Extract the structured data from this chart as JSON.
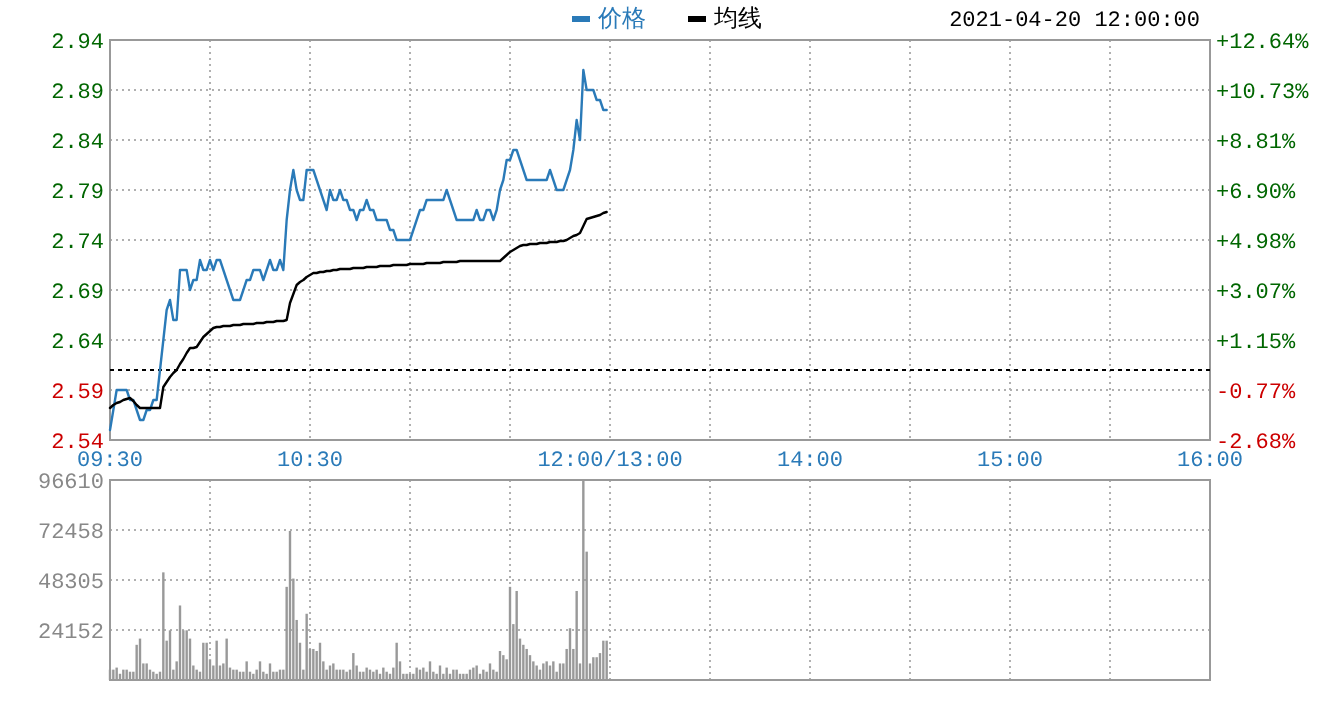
{
  "chart_data": [
    {
      "type": "line",
      "categories": [
        "09:30",
        null,
        null,
        null,
        null,
        null,
        null,
        null,
        null,
        null,
        null,
        null,
        null,
        null,
        null,
        null,
        null,
        null,
        null,
        null,
        null,
        null,
        null,
        null,
        null,
        null,
        null,
        null,
        null,
        null,
        null,
        null,
        null,
        null,
        null,
        null,
        null,
        null,
        null,
        null,
        null,
        null,
        null,
        null,
        null,
        null,
        null,
        null,
        null,
        null,
        null,
        null,
        null,
        null,
        null,
        null,
        null,
        null,
        null,
        null,
        "10:30",
        null,
        null,
        null,
        null,
        null,
        null,
        null,
        null,
        null,
        null,
        null,
        null,
        null,
        null,
        null,
        null,
        null,
        null,
        null,
        null,
        null,
        null,
        null,
        null,
        null,
        null,
        null,
        null,
        null,
        null,
        null,
        null,
        null,
        null,
        null,
        null,
        null,
        null,
        null,
        null,
        null,
        null,
        null,
        null,
        null,
        null,
        null,
        null,
        null,
        null,
        null,
        null,
        null,
        null,
        null,
        null,
        null,
        null,
        null,
        null,
        null,
        null,
        null,
        null,
        null,
        null,
        null,
        null,
        null,
        null,
        null,
        null,
        null,
        null,
        null,
        null,
        null,
        null,
        null,
        null,
        null,
        null,
        null,
        null,
        null,
        null,
        null,
        null,
        null,
        "12:00/13:00",
        null,
        null,
        null,
        null,
        null,
        null,
        null,
        null,
        null,
        null,
        null,
        null,
        null,
        null,
        null,
        null,
        null,
        null,
        null,
        null,
        null,
        null,
        null,
        null,
        null,
        null,
        null,
        null,
        null,
        null,
        null,
        null,
        null,
        null,
        null,
        null,
        null,
        null,
        null,
        null,
        null,
        null,
        null,
        null,
        null,
        null,
        null,
        null,
        null,
        null,
        null,
        null,
        null,
        null,
        null,
        null,
        null,
        null,
        null,
        "14:00",
        null,
        null,
        null,
        null,
        null,
        null,
        null,
        null,
        null,
        null,
        null,
        null,
        null,
        null,
        null,
        null,
        null,
        null,
        null,
        null,
        null,
        null,
        null,
        null,
        null,
        null,
        null,
        null,
        null,
        null,
        null,
        null,
        null,
        null,
        null,
        null,
        null,
        null,
        null,
        null,
        null,
        null,
        null,
        null,
        null,
        null,
        null,
        null,
        null,
        null,
        null,
        null,
        null,
        null,
        null,
        null,
        null,
        null,
        null,
        "15:00",
        null,
        null,
        null,
        null,
        null,
        null,
        null,
        null,
        null,
        null,
        null,
        null,
        null,
        null,
        null,
        null,
        null,
        null,
        null,
        null,
        null,
        null,
        null,
        null,
        null,
        null,
        null,
        null,
        null,
        null,
        null,
        null,
        null,
        null,
        null,
        null,
        null,
        null,
        null,
        null,
        null,
        null,
        null,
        null,
        null,
        null,
        null,
        null,
        null,
        null,
        null,
        null,
        null,
        null,
        null,
        null,
        null,
        null,
        null,
        "16:00"
      ],
      "series": [
        {
          "name": "价格",
          "color": "#2a7ab8",
          "values": [
            2.55,
            2.57,
            2.59,
            2.59,
            2.59,
            2.59,
            2.58,
            2.58,
            2.57,
            2.56,
            2.56,
            2.57,
            2.57,
            2.58,
            2.58,
            2.61,
            2.64,
            2.67,
            2.68,
            2.66,
            2.66,
            2.71,
            2.71,
            2.71,
            2.69,
            2.7,
            2.7,
            2.72,
            2.71,
            2.71,
            2.72,
            2.71,
            2.72,
            2.72,
            2.71,
            2.7,
            2.69,
            2.68,
            2.68,
            2.68,
            2.69,
            2.7,
            2.7,
            2.71,
            2.71,
            2.71,
            2.7,
            2.71,
            2.72,
            2.71,
            2.71,
            2.72,
            2.71,
            2.76,
            2.79,
            2.81,
            2.79,
            2.78,
            2.78,
            2.81,
            2.81,
            2.81,
            2.8,
            2.79,
            2.78,
            2.77,
            2.79,
            2.78,
            2.78,
            2.79,
            2.78,
            2.78,
            2.77,
            2.77,
            2.76,
            2.77,
            2.77,
            2.78,
            2.77,
            2.77,
            2.76,
            2.76,
            2.76,
            2.76,
            2.75,
            2.75,
            2.74,
            2.74,
            2.74,
            2.74,
            2.74,
            2.75,
            2.76,
            2.77,
            2.77,
            2.78,
            2.78,
            2.78,
            2.78,
            2.78,
            2.78,
            2.79,
            2.78,
            2.77,
            2.76,
            2.76,
            2.76,
            2.76,
            2.76,
            2.76,
            2.77,
            2.76,
            2.76,
            2.77,
            2.77,
            2.76,
            2.77,
            2.79,
            2.8,
            2.82,
            2.82,
            2.83,
            2.83,
            2.82,
            2.81,
            2.8,
            2.8,
            2.8,
            2.8,
            2.8,
            2.8,
            2.8,
            2.81,
            2.8,
            2.79,
            2.79,
            2.79,
            2.8,
            2.81,
            2.83,
            2.86,
            2.84,
            2.91,
            2.89,
            2.89,
            2.89,
            2.88,
            2.88,
            2.87,
            2.87,
            null,
            null,
            null,
            null,
            null,
            null,
            null,
            null,
            null,
            null,
            null,
            null,
            null,
            null,
            null,
            null,
            null,
            null,
            null,
            null,
            null,
            null,
            null,
            null,
            null,
            null,
            null,
            null,
            null,
            null,
            null,
            null,
            null,
            null,
            null,
            null,
            null,
            null,
            null,
            null,
            null,
            null,
            null,
            null,
            null,
            null,
            null,
            null,
            null,
            null,
            null,
            null,
            null,
            null,
            null,
            null,
            null,
            null,
            null,
            null,
            null,
            null,
            null,
            null,
            null,
            null,
            null,
            null,
            null,
            null,
            null,
            null,
            null,
            null,
            null,
            null,
            null,
            null,
            null,
            null,
            null,
            null,
            null,
            null,
            null,
            null,
            null,
            null,
            null,
            null,
            null,
            null,
            null,
            null,
            null,
            null,
            null,
            null,
            null,
            null,
            null,
            null,
            null,
            null,
            null,
            null,
            null,
            null,
            null,
            null,
            null,
            null,
            null,
            null,
            null,
            null,
            null,
            null,
            null,
            null,
            null,
            null,
            null,
            null,
            null,
            null,
            null,
            null,
            null,
            null,
            null,
            null,
            null,
            null,
            null,
            null,
            null,
            null,
            null,
            null,
            null,
            null,
            null,
            null,
            null,
            null,
            null,
            null,
            null,
            null,
            null,
            null,
            null,
            null,
            null,
            null,
            null,
            null,
            null,
            null,
            null,
            null,
            null,
            null,
            null,
            null,
            null,
            null,
            null,
            null,
            null,
            null,
            null,
            null,
            null,
            null,
            null,
            null,
            null,
            null,
            null
          ]
        },
        {
          "name": "均线",
          "color": "#000000",
          "values": [
            2.572,
            2.575,
            2.577,
            2.578,
            2.58,
            2.581,
            2.582,
            2.579,
            2.575,
            2.572,
            2.572,
            2.572,
            2.572,
            2.572,
            2.572,
            2.572,
            2.593,
            2.598,
            2.603,
            2.607,
            2.61,
            2.616,
            2.621,
            2.627,
            2.632,
            2.632,
            2.633,
            2.638,
            2.643,
            2.646,
            2.649,
            2.652,
            2.653,
            2.653,
            2.654,
            2.654,
            2.654,
            2.655,
            2.655,
            2.655,
            2.656,
            2.656,
            2.656,
            2.656,
            2.657,
            2.657,
            2.657,
            2.658,
            2.658,
            2.658,
            2.659,
            2.659,
            2.659,
            2.66,
            2.677,
            2.686,
            2.695,
            2.698,
            2.7,
            2.703,
            2.705,
            2.707,
            2.707,
            2.708,
            2.708,
            2.709,
            2.709,
            2.71,
            2.71,
            2.711,
            2.711,
            2.711,
            2.711,
            2.712,
            2.712,
            2.712,
            2.712,
            2.713,
            2.713,
            2.713,
            2.713,
            2.714,
            2.714,
            2.714,
            2.714,
            2.715,
            2.715,
            2.715,
            2.715,
            2.715,
            2.716,
            2.716,
            2.716,
            2.716,
            2.716,
            2.717,
            2.717,
            2.717,
            2.717,
            2.717,
            2.718,
            2.718,
            2.718,
            2.718,
            2.718,
            2.719,
            2.719,
            2.719,
            2.719,
            2.719,
            2.719,
            2.719,
            2.719,
            2.719,
            2.719,
            2.719,
            2.719,
            2.719,
            2.722,
            2.725,
            2.728,
            2.73,
            2.732,
            2.734,
            2.735,
            2.735,
            2.736,
            2.736,
            2.736,
            2.737,
            2.737,
            2.737,
            2.738,
            2.738,
            2.738,
            2.739,
            2.739,
            2.74,
            2.742,
            2.744,
            2.745,
            2.747,
            2.754,
            2.761,
            2.762,
            2.763,
            2.764,
            2.765,
            2.767,
            2.768,
            null,
            null,
            null,
            null,
            null,
            null,
            null,
            null,
            null,
            null,
            null,
            null,
            null,
            null,
            null,
            null,
            null,
            null,
            null,
            null,
            null,
            null,
            null,
            null,
            null,
            null,
            null,
            null,
            null,
            null,
            null,
            null,
            null,
            null,
            null,
            null,
            null,
            null,
            null,
            null,
            null,
            null,
            null,
            null,
            null,
            null,
            null,
            null,
            null,
            null,
            null,
            null,
            null,
            null,
            null,
            null,
            null,
            null,
            null,
            null,
            null,
            null,
            null,
            null,
            null,
            null,
            null,
            null,
            null,
            null,
            null,
            null,
            null,
            null,
            null,
            null,
            null,
            null,
            null,
            null,
            null,
            null,
            null,
            null,
            null,
            null,
            null,
            null,
            null,
            null,
            null,
            null,
            null,
            null,
            null,
            null,
            null,
            null,
            null,
            null,
            null,
            null,
            null,
            null,
            null,
            null,
            null,
            null,
            null,
            null,
            null,
            null,
            null,
            null,
            null,
            null,
            null,
            null,
            null,
            null,
            null,
            null,
            null,
            null,
            null,
            null,
            null,
            null,
            null,
            null,
            null,
            null,
            null,
            null,
            null,
            null,
            null,
            null,
            null,
            null,
            null,
            null,
            null,
            null,
            null,
            null,
            null,
            null,
            null,
            null,
            null,
            null,
            null,
            null,
            null,
            null,
            null,
            null,
            null,
            null,
            null,
            null,
            null,
            null,
            null,
            null,
            null,
            null,
            null,
            null,
            null,
            null,
            null,
            null,
            null,
            null,
            null,
            null,
            null,
            null,
            null
          ]
        }
      ],
      "ylim": [
        2.54,
        2.94
      ],
      "yticks": [
        2.54,
        2.59,
        2.64,
        2.69,
        2.74,
        2.79,
        2.84,
        2.89,
        2.94
      ],
      "y2lim": [
        -2.68,
        12.64
      ],
      "y2ticks": [
        {
          "value": -2.68,
          "label": "-2.68%"
        },
        {
          "value": -0.77,
          "label": "-0.77%"
        },
        {
          "value": 1.15,
          "label": "+1.15%"
        },
        {
          "value": 3.07,
          "label": "+3.07%"
        },
        {
          "value": 4.98,
          "label": "+4.98%"
        },
        {
          "value": 6.9,
          "label": "+6.90%"
        },
        {
          "value": 8.81,
          "label": "+8.81%"
        },
        {
          "value": 10.73,
          "label": "+10.73%"
        },
        {
          "value": 12.64,
          "label": "+12.64%"
        }
      ],
      "ref_lines": [
        {
          "axis": "y",
          "value": 2.61,
          "color": "#000000",
          "line_style": "dashed"
        }
      ],
      "grid": true,
      "legend": "top",
      "annotations": [
        "2021-04-20 12:00:00"
      ]
    },
    {
      "type": "bar",
      "color": "#999999",
      "categories": [
        null,
        null,
        null,
        null,
        null,
        null,
        null,
        null,
        null,
        null,
        null,
        null,
        null,
        null,
        null,
        null,
        null,
        null,
        null,
        null,
        null,
        null,
        null,
        null,
        null,
        null,
        null,
        null,
        null,
        null,
        null,
        null,
        null,
        null,
        null,
        null,
        null,
        null,
        null,
        null,
        null,
        null,
        null,
        null,
        null,
        null,
        null,
        null,
        null,
        null,
        null,
        null,
        null,
        null,
        null,
        null,
        null,
        null,
        null,
        null,
        null,
        null,
        null,
        null,
        null,
        null,
        null,
        null,
        null,
        null,
        null,
        null,
        null,
        null,
        null,
        null,
        null,
        null,
        null,
        null,
        null,
        null,
        null,
        null,
        null,
        null,
        null,
        null,
        null,
        null,
        null,
        null,
        null,
        null,
        null,
        null,
        null,
        null,
        null,
        null,
        null,
        null,
        null,
        null,
        null,
        null,
        null,
        null,
        null,
        null,
        null,
        null,
        null,
        null,
        null,
        null,
        null,
        null,
        null,
        null,
        null,
        null,
        null,
        null,
        null,
        null,
        null,
        null,
        null,
        null,
        null,
        null,
        null,
        null,
        null,
        null,
        null,
        null,
        null,
        null,
        null,
        null,
        null,
        null,
        null,
        null,
        null,
        null,
        null,
        null,
        null,
        null,
        null,
        null,
        null,
        null,
        null,
        null,
        null,
        null,
        null,
        null,
        null,
        null,
        null,
        null,
        null,
        null,
        null,
        null,
        null,
        null,
        null,
        null,
        null,
        null,
        null,
        null,
        null,
        null,
        null,
        null,
        null,
        null,
        null,
        null,
        null,
        null,
        null,
        null,
        null,
        null,
        null,
        null,
        null,
        null,
        null,
        null,
        null,
        null,
        null,
        null,
        null,
        null,
        null,
        null,
        null,
        null,
        null,
        null,
        null,
        null,
        null,
        null,
        null,
        null,
        null,
        null,
        null,
        null,
        null,
        null,
        null,
        null,
        null,
        null,
        null,
        null,
        null,
        null,
        null,
        null,
        null,
        null,
        null,
        null,
        null,
        null,
        null,
        null,
        null,
        null,
        null,
        null,
        null,
        null,
        null,
        null,
        null,
        null,
        null,
        null,
        null,
        null,
        null,
        null,
        null,
        null,
        null,
        null,
        null,
        null,
        null,
        null,
        null,
        null,
        null,
        null,
        null,
        null,
        null,
        null,
        null,
        null,
        null,
        null,
        null,
        null,
        null,
        null,
        null,
        null,
        null,
        null,
        null,
        null,
        null,
        null,
        null,
        null,
        null,
        null,
        null,
        null,
        null,
        null,
        null,
        null,
        null,
        null,
        null,
        null,
        null,
        null,
        null,
        null,
        null,
        null,
        null,
        null,
        null,
        null,
        null,
        null,
        null,
        null,
        null,
        null,
        null,
        null,
        null,
        null,
        null,
        null,
        null,
        null,
        null,
        null,
        null,
        null,
        null
      ],
      "values": [
        5000,
        5000,
        6000,
        3000,
        5000,
        5000,
        4000,
        4000,
        17000,
        20000,
        8000,
        8000,
        5000,
        4000,
        3000,
        4000,
        52000,
        19000,
        24000,
        5000,
        9000,
        36000,
        24000,
        24000,
        20000,
        7000,
        5000,
        4000,
        18000,
        18000,
        10000,
        7000,
        19000,
        7000,
        8000,
        20000,
        6000,
        5000,
        5000,
        4000,
        4000,
        9000,
        4000,
        3000,
        5000,
        9000,
        4000,
        3000,
        8000,
        4000,
        4000,
        5000,
        5000,
        45000,
        72000,
        49000,
        29000,
        18000,
        5000,
        32000,
        15000,
        15000,
        14000,
        18000,
        9000,
        5000,
        7000,
        8000,
        5000,
        5000,
        5000,
        4000,
        5000,
        13000,
        7000,
        4000,
        4000,
        6000,
        5000,
        4000,
        5000,
        3000,
        6000,
        4000,
        3000,
        6000,
        18000,
        9000,
        3000,
        3000,
        3000,
        3000,
        6000,
        5000,
        6000,
        4000,
        9000,
        4000,
        3000,
        7000,
        3000,
        6000,
        3000,
        5000,
        5000,
        3000,
        3000,
        3000,
        5000,
        6000,
        7000,
        3000,
        5000,
        4000,
        8000,
        5000,
        4000,
        14000,
        12000,
        10000,
        45000,
        27000,
        43000,
        20000,
        17000,
        15000,
        12000,
        9000,
        7000,
        5000,
        8000,
        9000,
        7000,
        9000,
        4000,
        8000,
        8000,
        15000,
        25000,
        15000,
        43000,
        8000,
        96610,
        62000,
        8000,
        11000,
        11000,
        13000,
        19000,
        19000,
        null,
        null,
        null,
        null,
        null,
        null,
        null,
        null,
        null,
        null,
        null,
        null,
        null,
        null,
        null,
        null,
        null,
        null,
        null,
        null,
        null,
        null,
        null,
        null,
        null,
        null,
        null,
        null,
        null,
        null,
        null,
        null,
        null,
        null,
        null,
        null,
        null,
        null,
        null,
        null,
        null,
        null,
        null,
        null,
        null,
        null,
        null,
        null,
        null,
        null,
        null,
        null,
        null,
        null,
        null,
        null,
        null,
        null,
        null,
        null,
        null,
        null,
        null,
        null,
        null,
        null,
        null,
        null,
        null,
        null,
        null,
        null,
        null,
        null,
        null,
        null,
        null,
        null,
        null,
        null,
        null,
        null,
        null,
        null,
        null,
        null,
        null,
        null,
        null,
        null,
        null,
        null,
        null,
        null,
        null,
        null,
        null,
        null,
        null,
        null,
        null,
        null,
        null,
        null,
        null,
        null,
        null,
        null,
        null,
        null,
        null,
        null,
        null,
        null,
        null,
        null,
        null,
        null,
        null,
        null,
        null,
        null,
        null,
        null,
        null,
        null,
        null,
        null,
        null,
        null,
        null,
        null,
        null,
        null,
        null,
        null,
        null,
        null,
        null,
        null,
        null,
        null,
        null,
        null,
        null,
        null,
        null,
        null,
        null,
        null,
        null,
        null,
        null,
        null,
        null,
        null,
        null,
        null,
        null,
        null,
        null,
        null,
        null,
        null,
        null,
        null,
        null,
        null,
        null,
        null,
        null,
        null,
        null,
        null,
        null,
        null,
        null,
        null,
        null,
        null,
        null
      ],
      "ylim": [
        0,
        96610
      ],
      "yticks": [
        24152,
        48305,
        72458,
        96610
      ],
      "grid": true,
      "tick_labels": "y"
    }
  ]
}
